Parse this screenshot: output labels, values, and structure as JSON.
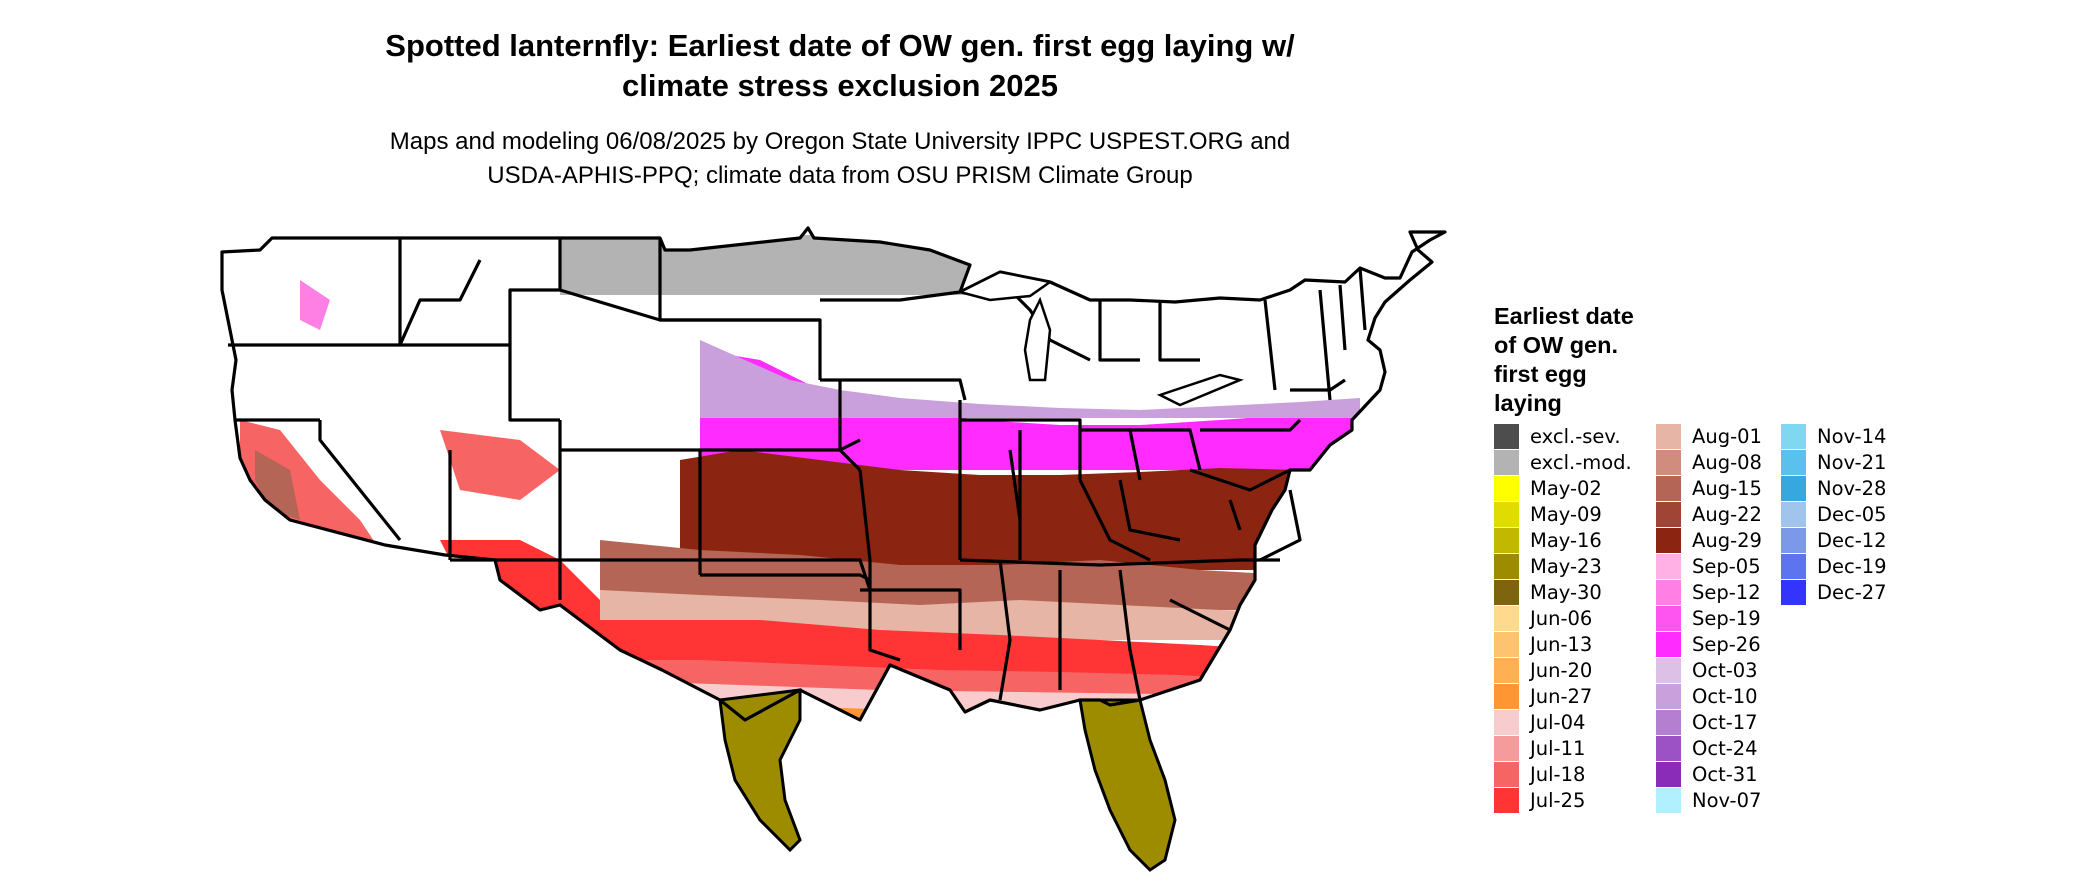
{
  "title": {
    "line1": "Spotted lanternfly: Earliest date of OW gen. first egg laying w/",
    "line2": "climate stress exclusion 2025"
  },
  "subtitle": {
    "line1": "Maps and modeling 06/08/2025 by Oregon State University IPPC USPEST.ORG and",
    "line2": "USDA-APHIS-PPQ; climate data from OSU PRISM Climate Group"
  },
  "legend": {
    "title_lines": [
      "Earliest date",
      "of OW gen.",
      "first egg",
      "laying"
    ],
    "columns": [
      [
        {
          "label": "excl.-sev.",
          "color": "#4d4d4d"
        },
        {
          "label": "excl.-mod.",
          "color": "#b3b3b3"
        },
        {
          "label": "May-02",
          "color": "#ffff00"
        },
        {
          "label": "May-09",
          "color": "#e0db00"
        },
        {
          "label": "May-16",
          "color": "#c2b800"
        },
        {
          "label": "May-23",
          "color": "#9e8c00"
        },
        {
          "label": "May-30",
          "color": "#7f640f"
        },
        {
          "label": "Jun-06",
          "color": "#fed98e"
        },
        {
          "label": "Jun-13",
          "color": "#fec36e"
        },
        {
          "label": "Jun-20",
          "color": "#feb052"
        },
        {
          "label": "Jun-27",
          "color": "#fe9633"
        },
        {
          "label": "Jul-04",
          "color": "#f8cccc"
        },
        {
          "label": "Jul-11",
          "color": "#f59b9b"
        },
        {
          "label": "Jul-18",
          "color": "#f76464"
        },
        {
          "label": "Jul-25",
          "color": "#ff3434"
        }
      ],
      [
        {
          "label": "Aug-01",
          "color": "#e6b5a6"
        },
        {
          "label": "Aug-08",
          "color": "#d08d7e"
        },
        {
          "label": "Aug-15",
          "color": "#b56555"
        },
        {
          "label": "Aug-22",
          "color": "#a04535"
        },
        {
          "label": "Aug-29",
          "color": "#8b2512"
        },
        {
          "label": "Sep-05",
          "color": "#ffb0e4"
        },
        {
          "label": "Sep-12",
          "color": "#ff80e4"
        },
        {
          "label": "Sep-19",
          "color": "#ff55f0"
        },
        {
          "label": "Sep-26",
          "color": "#ff2bff"
        },
        {
          "label": "Oct-03",
          "color": "#dcc0e6"
        },
        {
          "label": "Oct-10",
          "color": "#c9a0dc"
        },
        {
          "label": "Oct-17",
          "color": "#b47fd0"
        },
        {
          "label": "Oct-24",
          "color": "#9c52c4"
        },
        {
          "label": "Oct-31",
          "color": "#8a2cb8"
        },
        {
          "label": "Nov-07",
          "color": "#b0f0ff"
        }
      ],
      [
        {
          "label": "Nov-14",
          "color": "#80d8f0"
        },
        {
          "label": "Nov-21",
          "color": "#5ac0ec"
        },
        {
          "label": "Nov-28",
          "color": "#35a8e0"
        },
        {
          "label": "Dec-05",
          "color": "#a0c4ec"
        },
        {
          "label": "Dec-12",
          "color": "#7c98e8"
        },
        {
          "label": "Dec-19",
          "color": "#5c74f0"
        },
        {
          "label": "Dec-27",
          "color": "#3434ff"
        }
      ]
    ]
  }
}
